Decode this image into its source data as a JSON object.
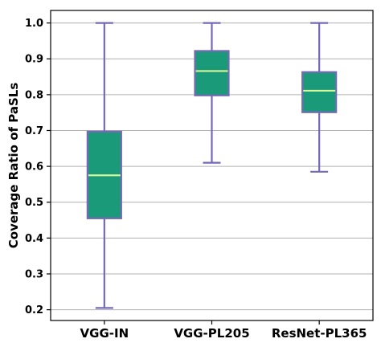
{
  "chart_data": {
    "type": "box",
    "title": "",
    "xlabel": "",
    "ylabel": "Coverage Ratio of PaSLs",
    "ylim": [
      0.17,
      1.035
    ],
    "yticks": [
      0.2,
      0.3,
      0.4,
      0.5,
      0.6,
      0.7,
      0.8,
      0.9,
      1.0
    ],
    "ytick_labels": [
      "0.2",
      "0.3",
      "0.4",
      "0.5",
      "0.6",
      "0.7",
      "0.8",
      "0.9",
      "1.0"
    ],
    "grid": "horizontal",
    "categories": [
      "VGG-IN",
      "VGG-PL205",
      "ResNet-PL365"
    ],
    "boxes": [
      {
        "category": "VGG-IN",
        "whisker_low": 0.205,
        "q1": 0.455,
        "median": 0.575,
        "q3": 0.697,
        "whisker_high": 1.0
      },
      {
        "category": "VGG-PL205",
        "whisker_low": 0.61,
        "q1": 0.798,
        "median": 0.866,
        "q3": 0.922,
        "whisker_high": 1.0
      },
      {
        "category": "ResNet-PL365",
        "whisker_low": 0.585,
        "q1": 0.751,
        "median": 0.811,
        "q3": 0.863,
        "whisker_high": 1.0
      }
    ],
    "colors": {
      "box_fill": "#1a9a78",
      "box_edge": "#7469b6",
      "median": "#d4f59a",
      "whisker": "#7469b6",
      "grid": "#b0b0b0",
      "axis": "#000000"
    }
  }
}
